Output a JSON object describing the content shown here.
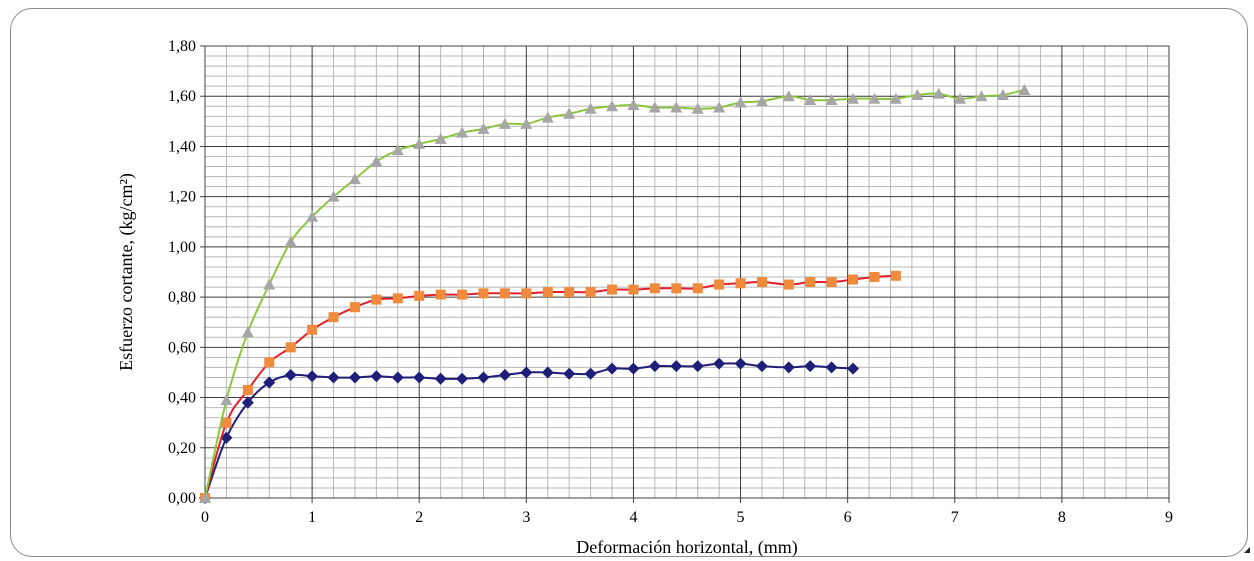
{
  "chart_data": {
    "type": "line",
    "xlabel": "Deformación horizontal, (mm)",
    "ylabel": "Esfuerzo cortante, (kg/cm²)",
    "xlim": [
      0,
      9
    ],
    "ylim": [
      0,
      1.8
    ],
    "xticks": [
      "0",
      "1",
      "2",
      "3",
      "4",
      "5",
      "6",
      "7",
      "8",
      "9"
    ],
    "yticks": [
      "0,00",
      "0,20",
      "0,40",
      "0,60",
      "0,80",
      "1,00",
      "1,20",
      "1,40",
      "1,60",
      "1,80"
    ],
    "grid": true,
    "legend": "none",
    "series": [
      {
        "color": "#1f1f7a",
        "marker": "diamond",
        "x": [
          0,
          0.2,
          0.4,
          0.6,
          0.8,
          1.0,
          1.2,
          1.4,
          1.6,
          1.8,
          2.0,
          2.2,
          2.4,
          2.6,
          2.8,
          3.0,
          3.2,
          3.4,
          3.6,
          3.8,
          4.0,
          4.2,
          4.4,
          4.6,
          4.8,
          5.0,
          5.2,
          5.45,
          5.65,
          5.85,
          6.05
        ],
        "y": [
          0.0,
          0.24,
          0.38,
          0.46,
          0.49,
          0.485,
          0.48,
          0.48,
          0.485,
          0.48,
          0.48,
          0.475,
          0.475,
          0.48,
          0.49,
          0.5,
          0.5,
          0.495,
          0.495,
          0.515,
          0.515,
          0.525,
          0.525,
          0.525,
          0.535,
          0.535,
          0.525,
          0.52,
          0.525,
          0.52,
          0.515
        ]
      },
      {
        "color": "#e0202a",
        "marker": "square",
        "markerColor": "#f08a3c",
        "x": [
          0,
          0.2,
          0.4,
          0.6,
          0.8,
          1.0,
          1.2,
          1.4,
          1.6,
          1.8,
          2.0,
          2.2,
          2.4,
          2.6,
          2.8,
          3.0,
          3.2,
          3.4,
          3.6,
          3.8,
          4.0,
          4.2,
          4.4,
          4.6,
          4.8,
          5.0,
          5.2,
          5.45,
          5.65,
          5.85,
          6.05,
          6.25,
          6.45
        ],
        "y": [
          0.0,
          0.3,
          0.43,
          0.54,
          0.6,
          0.67,
          0.72,
          0.76,
          0.79,
          0.795,
          0.805,
          0.81,
          0.81,
          0.815,
          0.815,
          0.815,
          0.82,
          0.82,
          0.82,
          0.83,
          0.83,
          0.835,
          0.835,
          0.835,
          0.85,
          0.855,
          0.86,
          0.85,
          0.86,
          0.86,
          0.87,
          0.88,
          0.885
        ]
      },
      {
        "color": "#8cc63f",
        "marker": "triangle",
        "markerColor": "#a6a6a6",
        "x": [
          0,
          0.2,
          0.4,
          0.6,
          0.8,
          1.0,
          1.2,
          1.4,
          1.6,
          1.8,
          2.0,
          2.2,
          2.4,
          2.6,
          2.8,
          3.0,
          3.2,
          3.4,
          3.6,
          3.8,
          4.0,
          4.2,
          4.4,
          4.6,
          4.8,
          5.0,
          5.2,
          5.45,
          5.65,
          5.85,
          6.05,
          6.25,
          6.45,
          6.65,
          6.85,
          7.05,
          7.25,
          7.45,
          7.65
        ],
        "y": [
          0.0,
          0.39,
          0.66,
          0.85,
          1.02,
          1.12,
          1.2,
          1.27,
          1.34,
          1.385,
          1.41,
          1.43,
          1.455,
          1.47,
          1.49,
          1.49,
          1.515,
          1.53,
          1.55,
          1.56,
          1.565,
          1.555,
          1.555,
          1.55,
          1.555,
          1.575,
          1.58,
          1.6,
          1.585,
          1.585,
          1.59,
          1.59,
          1.59,
          1.605,
          1.61,
          1.59,
          1.6,
          1.605,
          1.625
        ]
      }
    ]
  }
}
